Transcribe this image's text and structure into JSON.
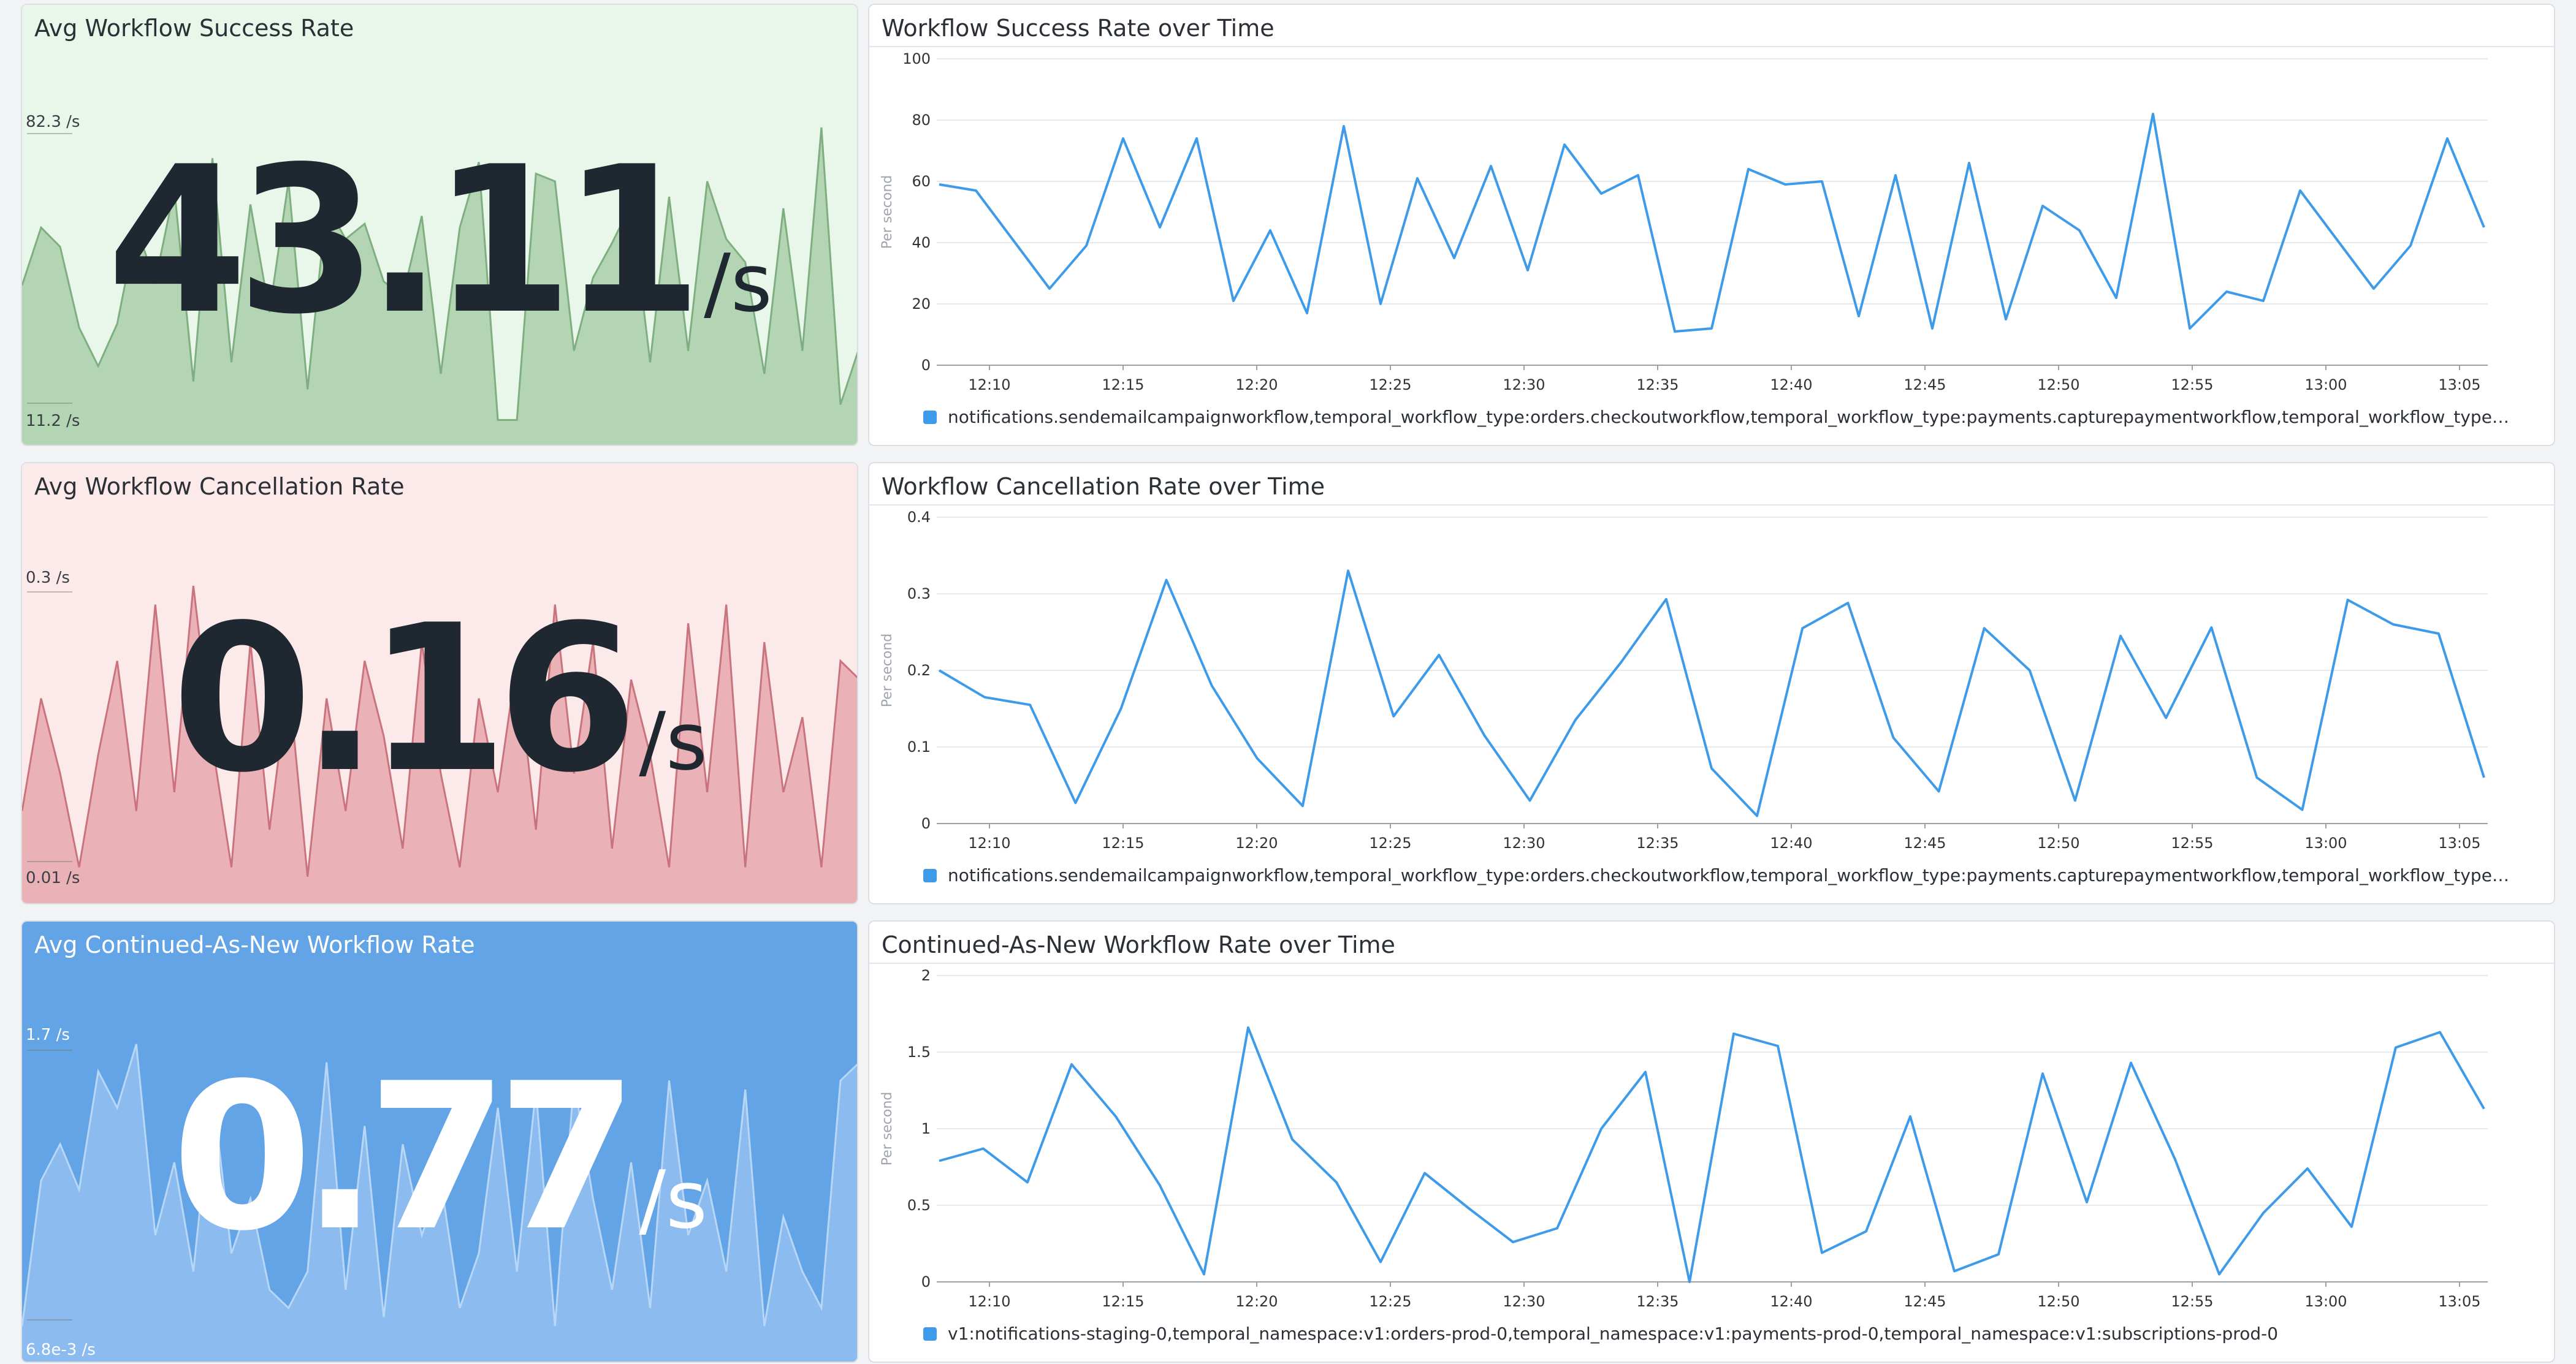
{
  "rows": [
    {
      "query_value": {
        "title": "Avg Workflow Success Rate",
        "value": "43.11",
        "unit": "/s",
        "max_label": "82.3 /s",
        "min_label": "11.2 /s",
        "theme": "green",
        "fill": "#a9cfa9",
        "stroke": "#7fae80",
        "bg": "#e9f6ea",
        "spark": [
          37,
          52,
          47,
          26,
          16,
          27,
          52,
          38,
          62,
          12,
          70,
          17,
          58,
          30,
          64,
          10,
          58,
          49,
          53,
          38,
          34,
          55,
          14,
          52,
          69,
          2,
          2,
          66,
          64,
          20,
          39,
          48,
          58,
          17,
          60,
          20,
          64,
          49,
          43,
          14,
          57,
          20,
          78,
          6,
          21
        ]
      },
      "timeseries": {
        "title": "Workflow Success Rate over Time",
        "ylabel": "Per second",
        "y_ticks": [
          "0",
          "20",
          "40",
          "60",
          "80",
          "100"
        ],
        "x_ticks": [
          "12:10",
          "12:15",
          "12:20",
          "12:25",
          "12:30",
          "12:35",
          "12:40",
          "12:45",
          "12:50",
          "12:55",
          "13:00",
          "13:05"
        ],
        "legend": "notifications.sendemailcampaignworkflow,temporal_workflow_type:orders.checkoutworkflow,temporal_workflow_type:payments.capturepaymentworkflow,temporal_workflow_type:subs..."
      }
    },
    {
      "query_value": {
        "title": "Avg Workflow Cancellation Rate",
        "value": "0.16",
        "unit": "/s",
        "max_label": "0.3 /s",
        "min_label": "0.01 /s",
        "theme": "red",
        "fill": "#e6a8ae",
        "stroke": "#c9747d",
        "bg": "#fce9ea",
        "spark": [
          0.08,
          0.2,
          0.12,
          0.02,
          0.14,
          0.24,
          0.08,
          0.3,
          0.1,
          0.32,
          0.15,
          0.02,
          0.26,
          0.06,
          0.22,
          0.01,
          0.2,
          0.08,
          0.24,
          0.16,
          0.04,
          0.26,
          0.12,
          0.02,
          0.2,
          0.1,
          0.24,
          0.06,
          0.3,
          0.12,
          0.26,
          0.04,
          0.22,
          0.14,
          0.02,
          0.28,
          0.1,
          0.3,
          0.02,
          0.26,
          0.1,
          0.18,
          0.02,
          0.24,
          0.22
        ]
      },
      "timeseries": {
        "title": "Workflow Cancellation Rate over Time",
        "ylabel": "Per second",
        "y_ticks": [
          "0",
          "0.1",
          "0.2",
          "0.3",
          "0.4"
        ],
        "x_ticks": [
          "12:10",
          "12:15",
          "12:20",
          "12:25",
          "12:30",
          "12:35",
          "12:40",
          "12:45",
          "12:50",
          "12:55",
          "13:00",
          "13:05"
        ],
        "legend": "notifications.sendemailcampaignworkflow,temporal_workflow_type:orders.checkoutworkflow,temporal_workflow_type:payments.capturepaymentworkflow,temporal_workflow_type:subs..."
      }
    },
    {
      "query_value": {
        "title": "Avg Continued-As-New Workflow Rate",
        "value": "0.77",
        "unit": "/s",
        "max_label": "1.7 /s",
        "min_label": "6.8e-3 /s",
        "theme": "blue",
        "fill": "#93c0f0",
        "stroke": "#b8d6f6",
        "bg": "#62a4e6",
        "spark": [
          0.1,
          0.9,
          1.1,
          0.85,
          1.5,
          1.3,
          1.65,
          0.6,
          1.0,
          0.4,
          1.4,
          0.5,
          0.8,
          0.3,
          0.2,
          0.4,
          1.55,
          0.3,
          1.2,
          0.15,
          1.1,
          0.6,
          0.9,
          0.2,
          0.5,
          1.3,
          0.4,
          1.4,
          0.1,
          1.45,
          0.8,
          0.3,
          1.0,
          0.2,
          1.45,
          0.6,
          0.9,
          0.4,
          1.4,
          0.1,
          0.7,
          0.4,
          0.2,
          1.45,
          1.55
        ]
      },
      "timeseries": {
        "title": "Continued-As-New Workflow Rate over Time",
        "ylabel": "Per second",
        "y_ticks": [
          "0",
          "0.5",
          "1",
          "1.5",
          "2"
        ],
        "x_ticks": [
          "12:10",
          "12:15",
          "12:20",
          "12:25",
          "12:30",
          "12:35",
          "12:40",
          "12:45",
          "12:50",
          "12:55",
          "13:00",
          "13:05"
        ],
        "legend": "v1:notifications-staging-0,temporal_namespace:v1:orders-prod-0,temporal_namespace:v1:payments-prod-0,temporal_namespace:v1:subscriptions-prod-0"
      }
    }
  ],
  "chart_data": [
    {
      "type": "line",
      "title": "Workflow Success Rate over Time",
      "ylabel": "Per second",
      "ylim": [
        0,
        100
      ],
      "x": [
        "12:08",
        "12:08:30",
        "12:09",
        "12:10",
        "12:12",
        "12:14",
        "12:15",
        "12:16",
        "12:17",
        "12:19",
        "12:20",
        "12:22",
        "12:23",
        "12:24",
        "12:25",
        "12:26",
        "12:28",
        "12:30",
        "12:32",
        "12:33",
        "12:35",
        "12:37",
        "12:38",
        "12:40",
        "12:41",
        "12:42",
        "12:45",
        "12:46",
        "12:47",
        "12:49",
        "12:50",
        "12:51",
        "12:52",
        "12:53",
        "12:55",
        "12:57",
        "12:59",
        "13:00",
        "13:01",
        "13:02",
        "13:04",
        "13:05",
        "13:06"
      ],
      "series": [
        {
          "values": [
            59,
            57,
            41,
            25,
            39,
            74,
            45,
            74,
            21,
            44,
            17,
            78,
            20,
            61,
            35,
            65,
            31,
            72,
            56,
            62,
            11,
            12,
            64,
            59,
            60,
            16,
            62,
            12,
            66,
            15,
            52,
            44,
            22,
            82,
            12,
            24,
            21,
            57,
            41,
            25,
            39,
            74,
            45
          ]
        }
      ]
    },
    {
      "type": "line",
      "title": "Workflow Cancellation Rate over Time",
      "ylabel": "Per second",
      "ylim": [
        0,
        0.4
      ],
      "x_ticks": [
        "12:10",
        "12:15",
        "12:20",
        "12:25",
        "12:30",
        "12:35",
        "12:40",
        "12:45",
        "12:50",
        "12:55",
        "13:00",
        "13:05"
      ],
      "series": [
        {
          "values": [
            0.2,
            0.165,
            0.155,
            0.027,
            0.15,
            0.318,
            0.18,
            0.085,
            0.023,
            0.33,
            0.14,
            0.22,
            0.115,
            0.03,
            0.135,
            0.21,
            0.293,
            0.072,
            0.01,
            0.255,
            0.288,
            0.112,
            0.042,
            0.255,
            0.2,
            0.03,
            0.245,
            0.138,
            0.256,
            0.06,
            0.018,
            0.292,
            0.26,
            0.248,
            0.06
          ]
        }
      ]
    },
    {
      "type": "line",
      "title": "Continued-As-New Workflow Rate over Time",
      "ylabel": "Per second",
      "ylim": [
        0,
        2
      ],
      "x_ticks": [
        "12:10",
        "12:15",
        "12:20",
        "12:25",
        "12:30",
        "12:35",
        "12:40",
        "12:45",
        "12:50",
        "12:55",
        "13:00",
        "13:05"
      ],
      "series": [
        {
          "values": [
            0.79,
            0.87,
            0.65,
            1.42,
            1.08,
            0.63,
            0.05,
            1.66,
            0.93,
            0.65,
            0.13,
            0.71,
            0.48,
            0.26,
            0.35,
            1.0,
            1.37,
            0.0,
            1.62,
            1.54,
            0.19,
            0.33,
            1.08,
            0.07,
            0.18,
            1.36,
            0.52,
            1.43,
            0.8,
            0.05,
            0.45,
            0.74,
            0.36,
            1.53,
            1.63,
            1.13
          ]
        }
      ]
    }
  ]
}
